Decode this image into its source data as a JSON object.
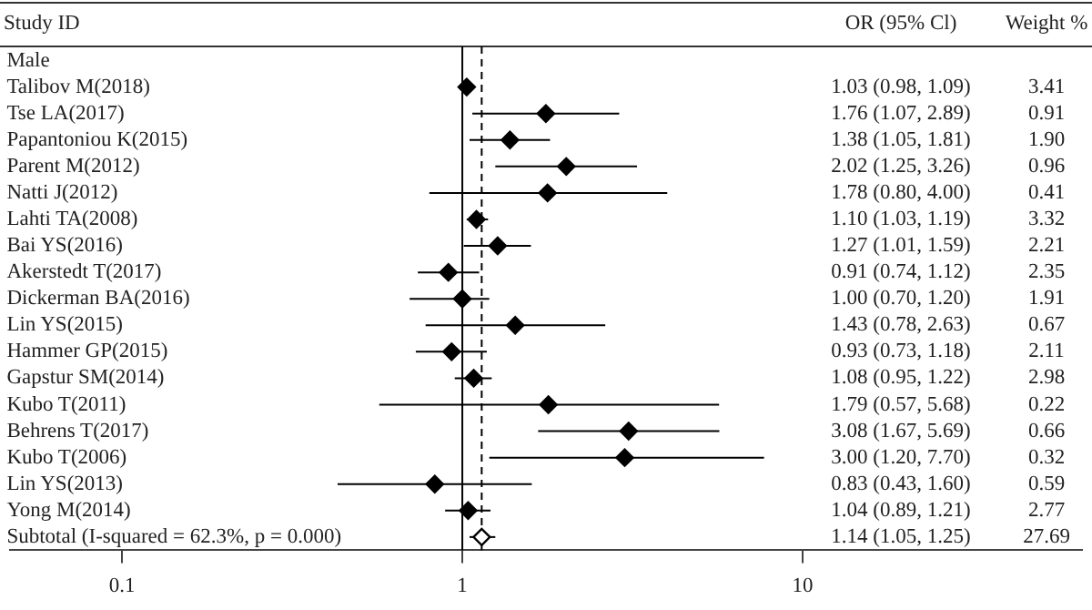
{
  "chart_data": {
    "type": "scatter",
    "orientation": "horizontal",
    "log": "x",
    "ylabel": "Study ID",
    "marker": "diamond",
    "grid": false,
    "legend": false,
    "categories": [
      "Male",
      "Talibov M(2018)",
      "Tse LA(2017)",
      "Papantoniou K(2015)",
      "Parent M(2012)",
      "Natti J(2012)",
      "Lahti TA(2008)",
      "Bai YS(2016)",
      "Akerstedt T(2017)",
      "Dickerman BA(2016)",
      "Lin YS(2015)",
      "Hammer GP(2015)",
      "Gapstur SM(2014)",
      "Kubo T(2011)",
      "Behrens T(2017)",
      "Kubo T(2006)",
      "Lin YS(2013)",
      "Yong M(2014)",
      "Subtotal (I-squared = 62.3%, p = 0.000)"
    ],
    "series": [
      {
        "color": "#000000",
        "values": [
          null,
          1.03,
          1.76,
          1.38,
          2.02,
          1.78,
          1.1,
          1.27,
          0.91,
          1.0,
          1.43,
          0.93,
          1.08,
          1.79,
          3.08,
          3.0,
          0.83,
          1.04,
          null
        ],
        "errors": [
          null,
          [
            0.98,
            1.09
          ],
          [
            1.07,
            2.89
          ],
          [
            1.05,
            1.81
          ],
          [
            1.25,
            3.26
          ],
          [
            0.8,
            4.0
          ],
          [
            1.03,
            1.19
          ],
          [
            1.01,
            1.59
          ],
          [
            0.74,
            1.12
          ],
          [
            0.7,
            1.2
          ],
          [
            0.78,
            2.63
          ],
          [
            0.73,
            1.18
          ],
          [
            0.95,
            1.22
          ],
          [
            0.57,
            5.68
          ],
          [
            1.67,
            5.69
          ],
          [
            1.2,
            7.7
          ],
          [
            0.43,
            1.6
          ],
          [
            0.89,
            1.21
          ],
          null
        ]
      },
      {
        "color": "#000000",
        "values": [
          null,
          null,
          null,
          null,
          null,
          null,
          null,
          null,
          null,
          null,
          null,
          null,
          null,
          null,
          null,
          null,
          null,
          null,
          1.14
        ],
        "errors": [
          null,
          null,
          null,
          null,
          null,
          null,
          null,
          null,
          null,
          null,
          null,
          null,
          null,
          null,
          null,
          null,
          null,
          null,
          [
            1.05,
            1.25
          ]
        ]
      }
    ],
    "xlim": [
      0.047,
      66
    ],
    "xticks": [
      0.1,
      1,
      10
    ],
    "ref_lines": [
      {
        "axis": "x",
        "value": 1,
        "line_style": "solid"
      },
      {
        "axis": "x",
        "value": 1.14,
        "line_style": "dashed"
      }
    ],
    "annotations": [
      "OR (95% Cl)",
      "Weight %",
      "1.03 (0.98, 1.09)",
      "1.76 (1.07, 2.89)",
      "1.38 (1.05, 1.81)",
      "2.02 (1.25, 3.26)",
      "1.78 (0.80, 4.00)",
      "1.10 (1.03, 1.19)",
      "1.27 (1.01, 1.59)",
      "0.91 (0.74, 1.12)",
      "1.00 (0.70, 1.20)",
      "1.43 (0.78, 2.63)",
      "0.93 (0.73, 1.18)",
      "1.08 (0.95, 1.22)",
      "1.79 (0.57, 5.68)",
      "3.08 (1.67, 5.69)",
      "3.00 (1.20, 7.70)",
      "0.83 (0.43, 1.60)",
      "1.04 (0.89, 1.21)",
      "1.14 (1.05, 1.25)",
      "3.41",
      "0.91",
      "1.90",
      "0.96",
      "0.41",
      "3.32",
      "2.21",
      "2.35",
      "1.91",
      "0.67",
      "2.11",
      "2.98",
      "0.22",
      "0.66",
      "0.32",
      "0.59",
      "2.77",
      "27.69"
    ]
  }
}
